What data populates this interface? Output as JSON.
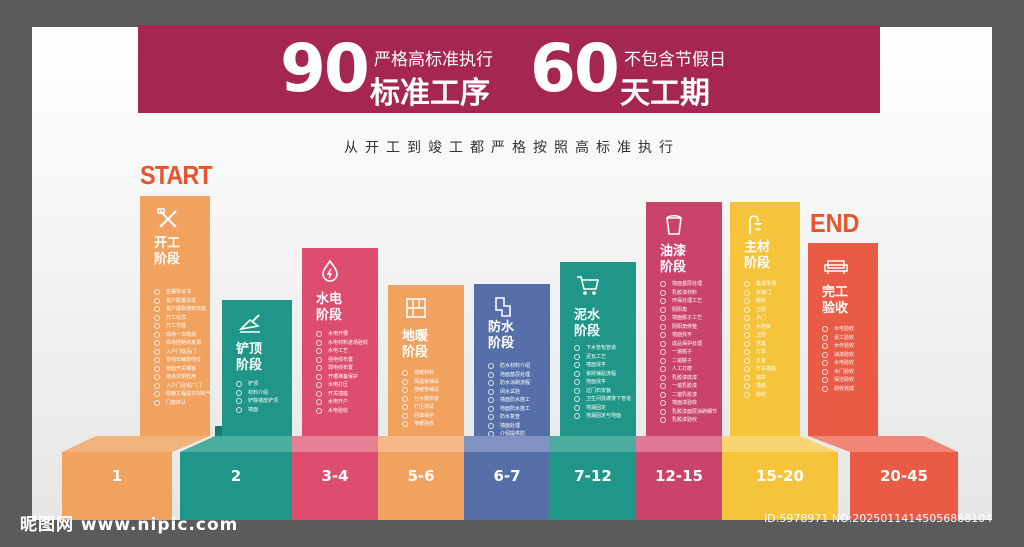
{
  "banner": {
    "num1": "90",
    "small1": "严格高标准执行",
    "big1": "标准工序",
    "num2": "60",
    "small2": "不包含节假日",
    "big2": "天工期"
  },
  "subtitle": "从开工到竣工都严格按照高标准执行",
  "start_label": "START",
  "end_label": "END",
  "colors": {
    "banner": "#a5264f",
    "orange": "#f0a25e",
    "teal": "#1f9688",
    "pink": "#dd4d6e",
    "blue": "#566fa8",
    "crimson": "#c9436b",
    "yellow": "#f5c43b",
    "red": "#ea5b46"
  },
  "stages": [
    {
      "name": "开工\n阶段",
      "icon": "tools-icon",
      "step": "1",
      "items": [
        "签署协议书",
        "客户配置清单",
        "客户提取通知交底",
        "开工仪式",
        "开工交底",
        "现场一次勘测",
        "现场控制点复测",
        "入户门成品门",
        "管线出铺管线位",
        "地面开关钢板",
        "地点交钥匙用",
        "入户门及铝厂门",
        "隐蔽工程提交材料气",
        "门窗体认"
      ]
    },
    {
      "name": "铲顶\n阶段",
      "icon": "trowel-icon",
      "step": "2",
      "items": [
        "铲顶",
        "材料介绍",
        "铲除墙皮铲顶",
        "墙面"
      ]
    },
    {
      "name": "水电\n阶段",
      "icon": "water-icon",
      "step": "3-4",
      "items": [
        "水电开槽",
        "水电材料进场验收",
        "水电工艺",
        "强电线布置",
        "弱电线布置",
        "开槽准备保护",
        "水电打压",
        "开关插座",
        "水电开户",
        "水电验收"
      ]
    },
    {
      "name": "地暖\n阶段",
      "icon": "floor-heating-icon",
      "step": "5-6",
      "items": [
        "地暖材料",
        "保温板铺设",
        "地暖管铺设",
        "分水器安装",
        "打压测试",
        "回填保护",
        "地暖验收"
      ]
    },
    {
      "name": "防水\n阶段",
      "icon": "pipe-icon",
      "step": "6-7",
      "items": [
        "防水材料介绍",
        "地面基层处理",
        "防水涂刷流程",
        "闭水试验",
        "墙面防水施工",
        "地面防水施工",
        "防水复查",
        "墙面处理",
        "介绍提供防"
      ]
    },
    {
      "name": "泥水\n阶段",
      "icon": "cart-icon",
      "step": "7-12",
      "items": [
        "下水管包管道",
        "泥瓦工艺",
        "墙面找平",
        "瓷砖铺贴流程",
        "地面找平",
        "过门石安装",
        "卫生间找坡排下管道",
        "地漏固定",
        "地漏固定与地面"
      ]
    },
    {
      "name": "油漆\n阶段",
      "icon": "paint-bucket-icon",
      "step": "12-15",
      "items": [
        "墙面基层处理",
        "乳胶漆材料",
        "环保处理工艺",
        "阴阳角",
        "墙面腻子工艺",
        "阴阳角修整",
        "墙面找平",
        "成品保护处理",
        "一遍腻子",
        "二遍腻子",
        "人工打磨",
        "乳胶漆底漆",
        "一遍乳胶漆",
        "二遍乳胶漆",
        "墙面漆验收",
        "乳胶漆面层涂刷细节",
        "乳胶漆验收"
      ]
    },
    {
      "name": "主材\n阶段",
      "icon": "shower-icon",
      "step": "15-20",
      "items": [
        "集成吊顶",
        "安装门",
        "橱柜",
        "卫浴",
        "木门",
        "木地板",
        "卫浴",
        "洁具",
        "灯具",
        "五金",
        "开关插座",
        "窗帘",
        "墙纸",
        "验收"
      ]
    },
    {
      "name": "完工\n验收",
      "icon": "sofa-icon",
      "step": "20-45",
      "items": [
        "水电验收",
        "泥工验收",
        "木作验收",
        "油漆验收",
        "水电验收",
        "木门验收",
        "保洁验收",
        "验收完成"
      ]
    }
  ],
  "watermark": "昵图网 www.nipic.com",
  "id_text": "ID:5978971 NO:20250114145056888104"
}
